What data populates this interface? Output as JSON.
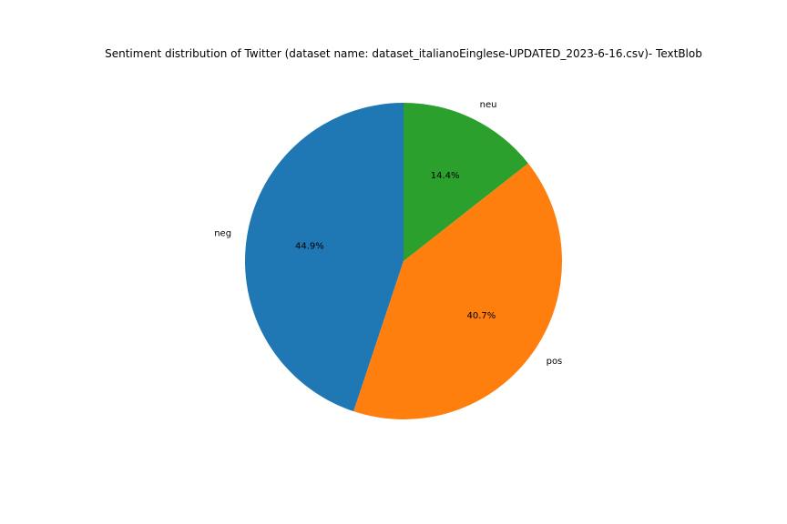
{
  "chart_data": {
    "type": "pie",
    "title": "Sentiment distribution of Twitter (dataset name: dataset_italianoEinglese-UPDATED_2023-6-16.csv)- TextBlob",
    "start_angle_deg": 90,
    "direction": "counterclockwise",
    "slices": [
      {
        "label": "neg",
        "value": 44.9,
        "pct_label": "44.9%",
        "color": "#1f77b4"
      },
      {
        "label": "pos",
        "value": 40.7,
        "pct_label": "40.7%",
        "color": "#ff7f0e"
      },
      {
        "label": "neu",
        "value": 14.4,
        "pct_label": "14.4%",
        "color": "#2ca02c"
      }
    ]
  }
}
